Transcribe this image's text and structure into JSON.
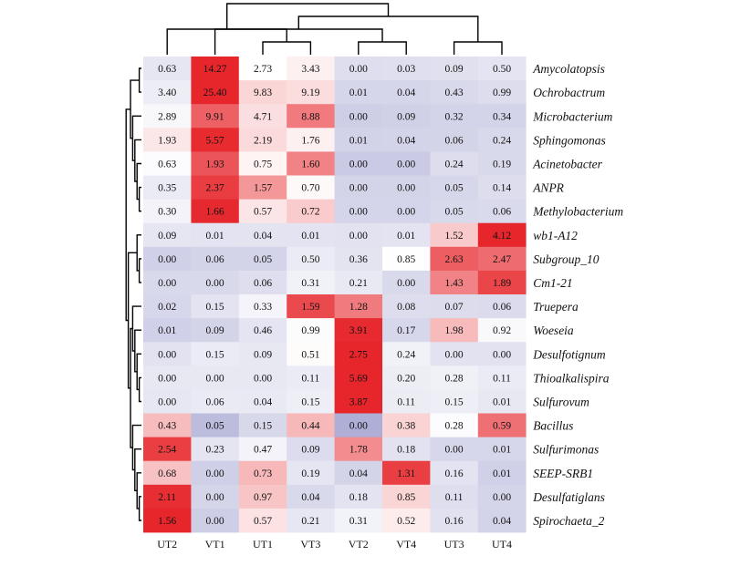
{
  "chart_data": {
    "type": "heatmap",
    "columns": [
      "UT2",
      "VT1",
      "UT1",
      "VT3",
      "VT2",
      "VT4",
      "UT3",
      "UT4"
    ],
    "rows": [
      "Amycolatopsis",
      "Ochrobactrum",
      "Microbacterium",
      "Sphingomonas",
      "Acinetobacter",
      "ANPR",
      "Methylobacterium",
      "wb1-A12",
      "Subgroup_10",
      "Cm1-21",
      "Truepera",
      "Woeseia",
      "Desulfotignum",
      "Thioalkalispira",
      "Sulfurovum",
      "Bacillus",
      "Sulfurimonas",
      "SEEP-SRB1",
      "Desulfatiglans",
      "Spirochaeta_2"
    ],
    "values": [
      [
        "0.63",
        "14.27",
        "2.73",
        "3.43",
        "0.00",
        "0.03",
        "0.09",
        "0.50"
      ],
      [
        "3.40",
        "25.40",
        "9.83",
        "9.19",
        "0.01",
        "0.04",
        "0.43",
        "0.99"
      ],
      [
        "2.89",
        "9.91",
        "4.71",
        "8.88",
        "0.00",
        "0.09",
        "0.32",
        "0.34"
      ],
      [
        "1.93",
        "5.57",
        "2.19",
        "1.76",
        "0.01",
        "0.04",
        "0.06",
        "0.24"
      ],
      [
        "0.63",
        "1.93",
        "0.75",
        "1.60",
        "0.00",
        "0.00",
        "0.24",
        "0.19"
      ],
      [
        "0.35",
        "2.37",
        "1.57",
        "0.70",
        "0.00",
        "0.00",
        "0.05",
        "0.14"
      ],
      [
        "0.30",
        "1.66",
        "0.57",
        "0.72",
        "0.00",
        "0.00",
        "0.05",
        "0.06"
      ],
      [
        "0.09",
        "0.01",
        "0.04",
        "0.01",
        "0.00",
        "0.01",
        "1.52",
        "4.12"
      ],
      [
        "0.00",
        "0.06",
        "0.05",
        "0.50",
        "0.36",
        "0.85",
        "2.63",
        "2.47"
      ],
      [
        "0.00",
        "0.00",
        "0.06",
        "0.31",
        "0.21",
        "0.00",
        "1.43",
        "1.89"
      ],
      [
        "0.02",
        "0.15",
        "0.33",
        "1.59",
        "1.28",
        "0.08",
        "0.07",
        "0.06"
      ],
      [
        "0.01",
        "0.09",
        "0.46",
        "0.99",
        "3.91",
        "0.17",
        "1.98",
        "0.92"
      ],
      [
        "0.00",
        "0.15",
        "0.09",
        "0.51",
        "2.75",
        "0.24",
        "0.00",
        "0.00"
      ],
      [
        "0.00",
        "0.00",
        "0.00",
        "0.11",
        "5.69",
        "0.20",
        "0.28",
        "0.11"
      ],
      [
        "0.00",
        "0.06",
        "0.04",
        "0.15",
        "3.87",
        "0.11",
        "0.15",
        "0.01"
      ],
      [
        "0.43",
        "0.05",
        "0.15",
        "0.44",
        "0.00",
        "0.38",
        "0.28",
        "0.59"
      ],
      [
        "2.54",
        "0.23",
        "0.47",
        "0.09",
        "1.78",
        "0.18",
        "0.00",
        "0.01"
      ],
      [
        "0.68",
        "0.00",
        "0.73",
        "0.19",
        "0.04",
        "1.31",
        "0.16",
        "0.01"
      ],
      [
        "2.11",
        "0.00",
        "0.97",
        "0.04",
        "0.18",
        "0.85",
        "0.11",
        "0.00"
      ],
      [
        "1.56",
        "0.00",
        "0.57",
        "0.21",
        "0.31",
        "0.52",
        "0.16",
        "0.04"
      ]
    ],
    "color_scale": {
      "low": "#7f7fbf",
      "mid": "#ffffff",
      "high": "#e6262b",
      "scaling": "row z-score"
    },
    "dendrogram_columns": [
      [
        4,
        5
      ],
      [
        6,
        7
      ],
      [
        2,
        3
      ],
      [
        1,
        8
      ],
      [
        0,
        10
      ],
      [
        9,
        11
      ],
      [
        12,
        13
      ]
    ],
    "dendrogram_rows": [
      [
        0,
        1
      ],
      [
        5,
        6
      ],
      [
        4,
        21
      ],
      [
        3,
        22
      ],
      [
        2,
        23
      ],
      [
        20,
        24
      ],
      [
        8,
        9
      ],
      [
        7,
        26
      ],
      [
        13,
        14
      ],
      [
        12,
        28
      ],
      [
        11,
        29
      ],
      [
        10,
        30
      ],
      [
        18,
        19
      ],
      [
        17,
        32
      ],
      [
        16,
        33
      ],
      [
        15,
        34
      ],
      [
        31,
        35
      ],
      [
        27,
        36
      ],
      [
        25,
        37
      ]
    ]
  }
}
